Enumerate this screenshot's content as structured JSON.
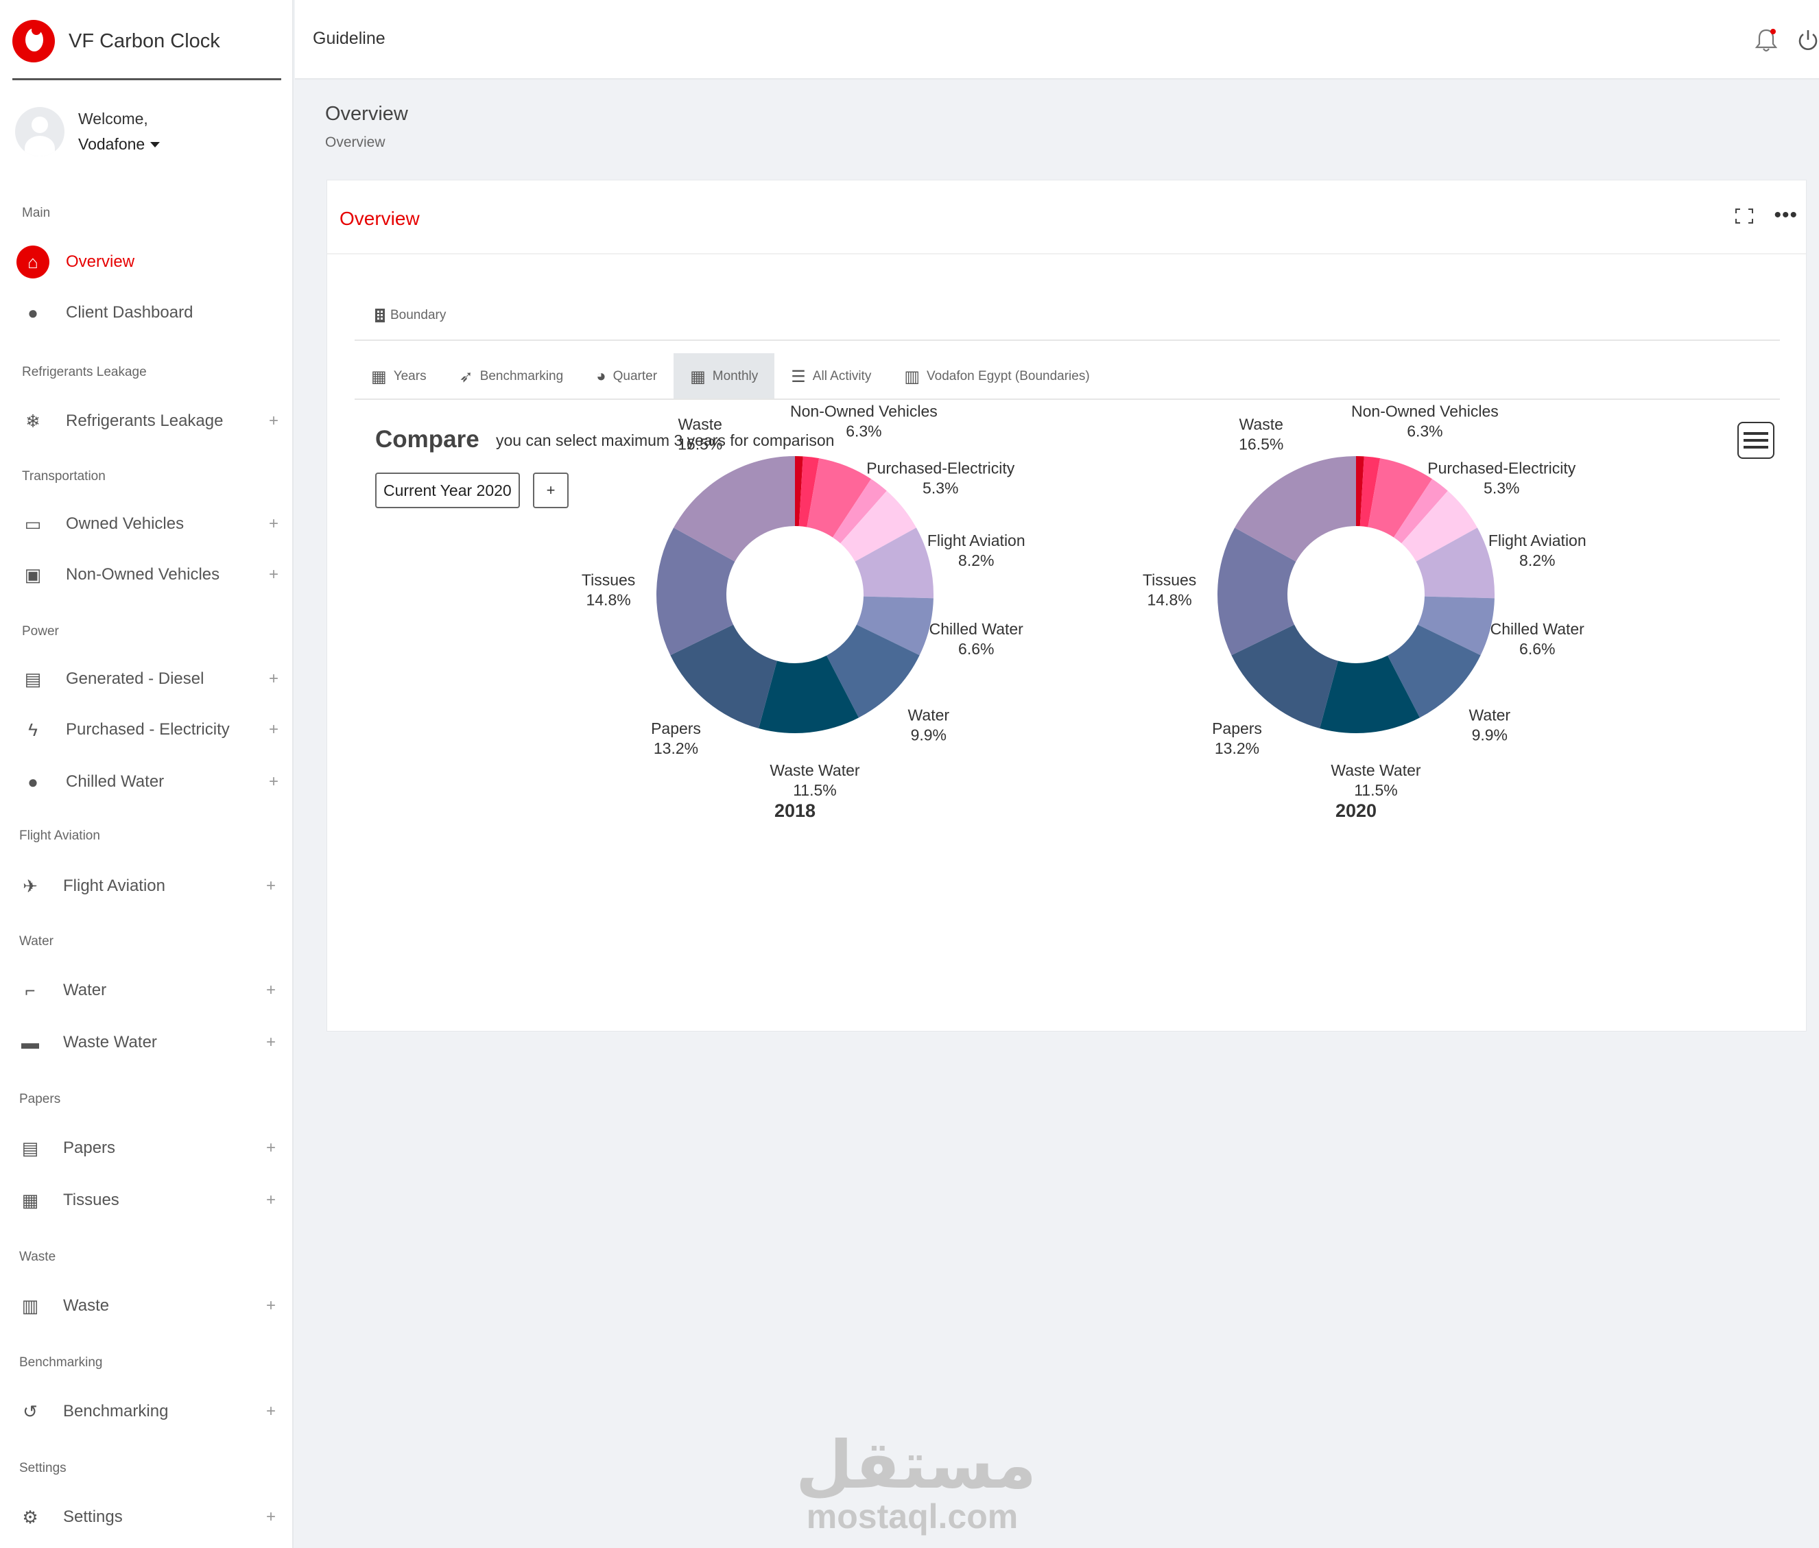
{
  "app": {
    "name": "VF Carbon Clock",
    "topbar_title": "Guideline"
  },
  "user": {
    "welcome": "Welcome,",
    "name": "Vodafone"
  },
  "nav": {
    "sections": [
      {
        "label": "Main",
        "items": [
          {
            "label": "Overview",
            "icon": "home-icon",
            "active": true,
            "plus": false
          },
          {
            "label": "Client Dashboard",
            "icon": "user-icon",
            "active": false,
            "plus": false
          }
        ]
      },
      {
        "label": "Refrigerants Leakage",
        "items": [
          {
            "label": "Refrigerants Leakage",
            "icon": "snowflake-icon",
            "plus": true
          }
        ]
      },
      {
        "label": "Transportation",
        "items": [
          {
            "label": "Owned Vehicles",
            "icon": "car-icon",
            "plus": true
          },
          {
            "label": "Non-Owned Vehicles",
            "icon": "bus-icon",
            "plus": true
          }
        ]
      },
      {
        "label": "Power",
        "items": [
          {
            "label": "Generated - Diesel",
            "icon": "generator-icon",
            "plus": true
          },
          {
            "label": "Purchased - Electricity",
            "icon": "bolt-icon",
            "plus": true
          },
          {
            "label": "Chilled Water",
            "icon": "droplet-icon",
            "plus": true
          }
        ]
      },
      {
        "label": "Flight Aviation",
        "items": [
          {
            "label": "Flight Aviation",
            "icon": "plane-icon",
            "plus": true
          }
        ]
      },
      {
        "label": "Water",
        "items": [
          {
            "label": "Water",
            "icon": "shower-icon",
            "plus": true
          },
          {
            "label": "Waste Water",
            "icon": "bathtub-icon",
            "plus": true
          }
        ]
      },
      {
        "label": "Papers",
        "items": [
          {
            "label": "Papers",
            "icon": "document-icon",
            "plus": true
          },
          {
            "label": "Tissues",
            "icon": "tissue-box-icon",
            "plus": true
          }
        ]
      },
      {
        "label": "Waste",
        "items": [
          {
            "label": "Waste",
            "icon": "trash-icon",
            "plus": true
          }
        ]
      },
      {
        "label": "Benchmarking",
        "items": [
          {
            "label": "Benchmarking",
            "icon": "history-icon",
            "plus": true
          }
        ]
      },
      {
        "label": "Settings",
        "items": [
          {
            "label": "Settings",
            "icon": "gear-icon",
            "plus": true
          }
        ]
      }
    ],
    "plus_symbol": "+"
  },
  "page": {
    "title": "Overview",
    "breadcrumb": "Overview"
  },
  "card": {
    "title": "Overview",
    "boundary_label": "Boundary",
    "tabs": [
      {
        "label": "Years",
        "icon": "calendar-icon",
        "glyph": "▦",
        "active": false
      },
      {
        "label": "Benchmarking",
        "icon": "rocket-icon",
        "glyph": "➶",
        "active": false
      },
      {
        "label": "Quarter",
        "icon": "pie-icon",
        "glyph": "◕",
        "active": false
      },
      {
        "label": "Monthly",
        "icon": "calendar-icon",
        "glyph": "▦",
        "active": true
      },
      {
        "label": "All Activity",
        "icon": "server-icon",
        "glyph": "☰",
        "active": false
      },
      {
        "label": "Vodafon Egypt (Boundaries)",
        "icon": "building-icon",
        "glyph": "▥",
        "active": false
      }
    ],
    "compare_title": "Compare",
    "compare_hint": "you can select maximum 3 years for comparison",
    "year_button": "Current Year 2020",
    "add_button": "+"
  },
  "colors": {
    "brand": "#e60000",
    "slices": [
      "#d6001c",
      "#ff3366",
      "#ff6699",
      "#ff99cc",
      "#ffccee",
      "#c4b0dc",
      "#8590bf",
      "#4a6a96",
      "#004a66",
      "#3c5a80",
      "#7378a6",
      "#a58fb8"
    ]
  },
  "chart_data": [
    {
      "type": "pie",
      "title": "2018",
      "series": [
        {
          "name": "Refrigerants Leakage",
          "value": 0.9,
          "label": ""
        },
        {
          "name": "Owned Vehicles",
          "value": 1.8,
          "label": ""
        },
        {
          "name": "Non-Owned Vehicles",
          "value": 6.3,
          "label": "Non-Owned Vehicles\n6.3%"
        },
        {
          "name": "Generated - Diesel",
          "value": 2.2,
          "label": ""
        },
        {
          "name": "Purchased-Electricity",
          "value": 5.3,
          "label": "Purchased-Electricity\n5.3%"
        },
        {
          "name": "Flight Aviation",
          "value": 8.2,
          "label": "Flight Aviation\n8.2%"
        },
        {
          "name": "Chilled Water",
          "value": 6.6,
          "label": "Chilled Water\n6.6%"
        },
        {
          "name": "Water",
          "value": 9.9,
          "label": "Water\n9.9%"
        },
        {
          "name": "Waste Water",
          "value": 11.5,
          "label": "Waste Water\n11.5%"
        },
        {
          "name": "Papers",
          "value": 13.2,
          "label": "Papers\n13.2%"
        },
        {
          "name": "Tissues",
          "value": 14.8,
          "label": "Tissues\n14.8%"
        },
        {
          "name": "Waste",
          "value": 16.5,
          "label": "Waste\n16.5%"
        }
      ]
    },
    {
      "type": "pie",
      "title": "2020",
      "series": [
        {
          "name": "Refrigerants Leakage",
          "value": 0.9,
          "label": ""
        },
        {
          "name": "Owned Vehicles",
          "value": 1.8,
          "label": ""
        },
        {
          "name": "Non-Owned Vehicles",
          "value": 6.3,
          "label": "Non-Owned Vehicles\n6.3%"
        },
        {
          "name": "Generated - Diesel",
          "value": 2.2,
          "label": ""
        },
        {
          "name": "Purchased-Electricity",
          "value": 5.3,
          "label": "Purchased-Electricity\n5.3%"
        },
        {
          "name": "Flight Aviation",
          "value": 8.2,
          "label": "Flight Aviation\n8.2%"
        },
        {
          "name": "Chilled Water",
          "value": 6.6,
          "label": "Chilled Water\n6.6%"
        },
        {
          "name": "Water",
          "value": 9.9,
          "label": "Water\n9.9%"
        },
        {
          "name": "Waste Water",
          "value": 11.5,
          "label": "Waste Water\n11.5%"
        },
        {
          "name": "Papers",
          "value": 13.2,
          "label": "Papers\n13.2%"
        },
        {
          "name": "Tissues",
          "value": 14.8,
          "label": "Tissues\n14.8%"
        },
        {
          "name": "Waste",
          "value": 16.5,
          "label": "Waste\n16.5%"
        }
      ]
    }
  ],
  "watermark": {
    "arabic": "مستقل",
    "latin": "mostaql.com"
  }
}
